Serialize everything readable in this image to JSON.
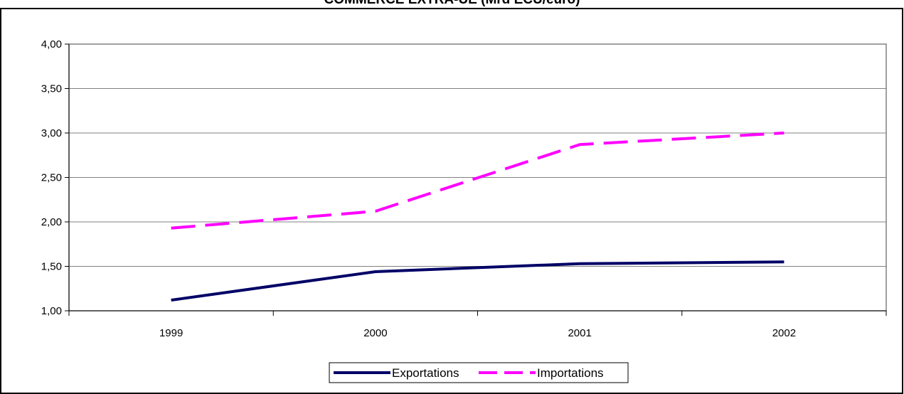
{
  "chart_data": {
    "type": "line",
    "title": "COMMERCE EXTRA-UE (Mrd ECU/euro)",
    "categories": [
      "1999",
      "2000",
      "2001",
      "2002"
    ],
    "y_tick_labels": [
      "1,00",
      "1,50",
      "2,00",
      "2,50",
      "3,00",
      "3,50",
      "4,00"
    ],
    "ylim": [
      1.0,
      4.0
    ],
    "grid": true,
    "legend_position": "bottom-center",
    "series": [
      {
        "name": "Exportations",
        "values": [
          1.12,
          1.44,
          1.53,
          1.55
        ],
        "color": "#000066",
        "style": "solid"
      },
      {
        "name": "Importations",
        "values": [
          1.93,
          2.12,
          2.87,
          3.0
        ],
        "color": "#ff00ff",
        "style": "dashed"
      }
    ]
  }
}
